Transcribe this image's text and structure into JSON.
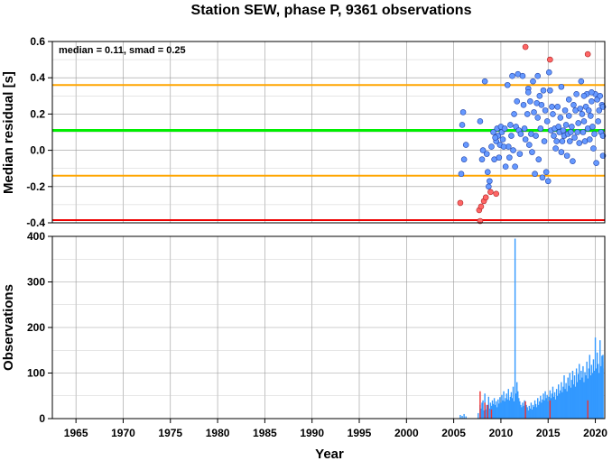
{
  "chart_data": [
    {
      "type": "scatter",
      "panel": "residual",
      "title": "Station SEW, phase P, 9361 observations",
      "ylabel": "Median residual [s]",
      "xlabel": "",
      "xlim": [
        1962.5,
        2021
      ],
      "ylim": [
        -0.4,
        0.6
      ],
      "grid": true,
      "annotation": "median = 0.11, smad = 0.25",
      "yticks": [
        "0.6",
        "0.4",
        "0.2",
        "0.0",
        "-0.2",
        "-0.4"
      ],
      "ytick_values": [
        0.6,
        0.4,
        0.2,
        0.0,
        -0.2,
        -0.4
      ],
      "hlines": [
        {
          "name": "median",
          "y": 0.11,
          "color": "#00ee00"
        },
        {
          "name": "median + smad",
          "y": 0.36,
          "color": "#ffa500"
        },
        {
          "name": "median - smad",
          "y": -0.14,
          "color": "#ffa500"
        },
        {
          "name": "lower bound",
          "y": -0.385,
          "color": "#ee0000"
        }
      ],
      "colors": {
        "normal": "#6699ff",
        "outlier": "#ff6666",
        "edge": "#2244aa"
      },
      "points_outlier": [
        [
          2005.7,
          -0.29
        ],
        [
          2007.7,
          -0.33
        ],
        [
          2007.9,
          -0.31
        ],
        [
          2008.2,
          -0.28
        ],
        [
          2008.4,
          -0.26
        ],
        [
          2008.9,
          -0.23
        ],
        [
          2009.5,
          -0.24
        ],
        [
          2007.8,
          -0.39
        ],
        [
          2012.6,
          0.57
        ],
        [
          2015.2,
          0.5
        ],
        [
          2019.2,
          0.53
        ]
      ],
      "points_normal": [
        [
          2005.8,
          -0.13
        ],
        [
          2005.9,
          0.14
        ],
        [
          2006.0,
          0.21
        ],
        [
          2006.3,
          0.03
        ],
        [
          2006.1,
          -0.05
        ],
        [
          2007.8,
          0.16
        ],
        [
          2008.0,
          -0.05
        ],
        [
          2008.1,
          0.0
        ],
        [
          2008.3,
          0.38
        ],
        [
          2008.5,
          -0.02
        ],
        [
          2008.6,
          -0.12
        ],
        [
          2008.7,
          -0.2
        ],
        [
          2008.8,
          -0.17
        ],
        [
          2009.0,
          0.02
        ],
        [
          2009.2,
          0.1
        ],
        [
          2009.3,
          -0.05
        ],
        [
          2009.5,
          0.05
        ],
        [
          2009.6,
          0.12
        ],
        [
          2009.7,
          0.08
        ],
        [
          2009.8,
          -0.04
        ],
        [
          2009.9,
          0.03
        ],
        [
          2010.0,
          0.13
        ],
        [
          2010.1,
          0.1
        ],
        [
          2010.2,
          0.06
        ],
        [
          2010.4,
          0.12
        ],
        [
          2010.5,
          -0.09
        ],
        [
          2010.7,
          0.36
        ],
        [
          2010.8,
          0.02
        ],
        [
          2010.9,
          -0.04
        ],
        [
          2011.0,
          0.14
        ],
        [
          2011.1,
          0.08
        ],
        [
          2011.2,
          0.41
        ],
        [
          2011.3,
          0.0
        ],
        [
          2011.4,
          0.2
        ],
        [
          2011.5,
          -0.09
        ],
        [
          2011.6,
          0.13
        ],
        [
          2011.7,
          0.27
        ],
        [
          2011.8,
          0.42
        ],
        [
          2011.9,
          0.11
        ],
        [
          2012.0,
          -0.02
        ],
        [
          2012.1,
          0.09
        ],
        [
          2012.3,
          0.41
        ],
        [
          2012.4,
          0.25
        ],
        [
          2012.5,
          0.12
        ],
        [
          2012.6,
          0.06
        ],
        [
          2012.8,
          0.2
        ],
        [
          2012.9,
          0.34
        ],
        [
          2013.0,
          0.03
        ],
        [
          2013.1,
          0.27
        ],
        [
          2013.2,
          0.09
        ],
        [
          2013.3,
          -0.01
        ],
        [
          2013.4,
          0.38
        ],
        [
          2013.5,
          0.21
        ],
        [
          2013.6,
          -0.13
        ],
        [
          2013.7,
          0.08
        ],
        [
          2013.8,
          0.26
        ],
        [
          2013.9,
          0.18
        ],
        [
          2014.0,
          -0.05
        ],
        [
          2014.1,
          0.3
        ],
        [
          2014.2,
          0.12
        ],
        [
          2014.3,
          0.25
        ],
        [
          2014.4,
          -0.15
        ],
        [
          2014.5,
          0.33
        ],
        [
          2014.6,
          0.05
        ],
        [
          2014.7,
          0.22
        ],
        [
          2014.8,
          -0.12
        ],
        [
          2014.9,
          0.16
        ],
        [
          2015.0,
          -0.17
        ],
        [
          2015.1,
          0.43
        ],
        [
          2015.2,
          0.33
        ],
        [
          2015.3,
          0.11
        ],
        [
          2015.4,
          0.24
        ],
        [
          2015.5,
          0.2
        ],
        [
          2015.6,
          0.08
        ],
        [
          2015.7,
          0.12
        ],
        [
          2015.8,
          0.01
        ],
        [
          2015.9,
          0.05
        ],
        [
          2016.0,
          0.24
        ],
        [
          2016.1,
          0.13
        ],
        [
          2016.2,
          0.1
        ],
        [
          2016.3,
          0.18
        ],
        [
          2016.4,
          -0.01
        ],
        [
          2016.5,
          0.05
        ],
        [
          2016.6,
          0.11
        ],
        [
          2016.7,
          0.08
        ],
        [
          2016.8,
          0.22
        ],
        [
          2016.9,
          0.14
        ],
        [
          2017.0,
          -0.03
        ],
        [
          2017.1,
          0.09
        ],
        [
          2017.2,
          0.19
        ],
        [
          2017.3,
          0.05
        ],
        [
          2017.4,
          0.1
        ],
        [
          2017.5,
          0.13
        ],
        [
          2017.6,
          -0.06
        ],
        [
          2017.7,
          0.25
        ],
        [
          2017.8,
          0.07
        ],
        [
          2017.9,
          0.22
        ],
        [
          2018.0,
          0.31
        ],
        [
          2018.1,
          0.1
        ],
        [
          2018.2,
          0.15
        ],
        [
          2018.3,
          0.04
        ],
        [
          2018.4,
          0.23
        ],
        [
          2018.5,
          0.38
        ],
        [
          2018.6,
          0.2
        ],
        [
          2018.7,
          0.1
        ],
        [
          2018.8,
          0.16
        ],
        [
          2018.9,
          0.05
        ],
        [
          2019.0,
          0.24
        ],
        [
          2019.1,
          0.31
        ],
        [
          2019.2,
          0.12
        ],
        [
          2019.3,
          0.22
        ],
        [
          2019.4,
          0.06
        ],
        [
          2019.5,
          0.19
        ],
        [
          2019.6,
          0.27
        ],
        [
          2019.7,
          0.13
        ],
        [
          2019.8,
          0.01
        ],
        [
          2019.9,
          0.09
        ],
        [
          2020.0,
          0.31
        ],
        [
          2020.1,
          -0.07
        ],
        [
          2020.2,
          0.28
        ],
        [
          2020.3,
          0.16
        ],
        [
          2020.4,
          0.22
        ],
        [
          2020.5,
          0.3
        ],
        [
          2020.6,
          0.1
        ],
        [
          2020.7,
          0.25
        ],
        [
          2020.8,
          0.08
        ],
        [
          2020.9,
          0.24
        ],
        [
          2021.0,
          -0.03
        ],
        [
          2019.6,
          0.32
        ],
        [
          2016.4,
          0.35
        ],
        [
          2013.9,
          0.41
        ],
        [
          2012.9,
          0.32
        ],
        [
          2010.3,
          0.02
        ],
        [
          2009.4,
          0.07
        ],
        [
          2018.8,
          0.3
        ],
        [
          2017.2,
          0.28
        ]
      ]
    },
    {
      "type": "bar",
      "panel": "observations",
      "ylabel": "Observations",
      "xlabel": "Year",
      "xlim": [
        1962.5,
        2021
      ],
      "ylim": [
        0,
        400
      ],
      "grid": true,
      "xticks": [
        "1965",
        "1970",
        "1975",
        "1980",
        "1985",
        "1990",
        "1995",
        "2000",
        "2005",
        "2010",
        "2015",
        "2020"
      ],
      "xtick_values": [
        1965,
        1970,
        1975,
        1980,
        1985,
        1990,
        1995,
        2000,
        2005,
        2010,
        2015,
        2020
      ],
      "yticks": [
        "400",
        "300",
        "200",
        "100",
        "0"
      ],
      "ytick_values": [
        400,
        300,
        200,
        100,
        0
      ],
      "colors": {
        "normal": "#3399ff",
        "outlier": "#ee3333"
      },
      "bars": [
        [
          2005.7,
          8
        ],
        [
          2005.9,
          6
        ],
        [
          2006.1,
          10
        ],
        [
          2006.3,
          5
        ],
        [
          2007.6,
          12
        ],
        [
          2007.8,
          30
        ],
        [
          2007.9,
          22
        ],
        [
          2008.0,
          35
        ],
        [
          2008.1,
          40
        ],
        [
          2008.2,
          18
        ],
        [
          2008.3,
          55
        ],
        [
          2008.4,
          20
        ],
        [
          2008.5,
          30
        ],
        [
          2008.6,
          25
        ],
        [
          2008.7,
          48
        ],
        [
          2008.8,
          22
        ],
        [
          2008.9,
          35
        ],
        [
          2009.0,
          28
        ],
        [
          2009.1,
          40
        ],
        [
          2009.2,
          32
        ],
        [
          2009.3,
          45
        ],
        [
          2009.4,
          30
        ],
        [
          2009.5,
          38
        ],
        [
          2009.6,
          25
        ],
        [
          2009.7,
          42
        ],
        [
          2009.8,
          33
        ],
        [
          2009.9,
          47
        ],
        [
          2010.0,
          35
        ],
        [
          2010.1,
          52
        ],
        [
          2010.2,
          40
        ],
        [
          2010.3,
          60
        ],
        [
          2010.4,
          38
        ],
        [
          2010.5,
          45
        ],
        [
          2010.6,
          55
        ],
        [
          2010.7,
          42
        ],
        [
          2010.8,
          65
        ],
        [
          2010.9,
          40
        ],
        [
          2011.0,
          48
        ],
        [
          2011.1,
          58
        ],
        [
          2011.2,
          45
        ],
        [
          2011.3,
          70
        ],
        [
          2011.4,
          38
        ],
        [
          2011.5,
          395
        ],
        [
          2011.6,
          55
        ],
        [
          2011.7,
          80
        ],
        [
          2011.8,
          60
        ],
        [
          2011.9,
          45
        ],
        [
          2012.0,
          38
        ],
        [
          2012.1,
          30
        ],
        [
          2012.2,
          25
        ],
        [
          2012.3,
          35
        ],
        [
          2012.4,
          28
        ],
        [
          2012.5,
          40
        ],
        [
          2012.6,
          22
        ],
        [
          2012.7,
          30
        ],
        [
          2012.8,
          25
        ],
        [
          2012.9,
          18
        ],
        [
          2013.0,
          28
        ],
        [
          2013.1,
          22
        ],
        [
          2013.2,
          35
        ],
        [
          2013.3,
          20
        ],
        [
          2013.4,
          30
        ],
        [
          2013.5,
          26
        ],
        [
          2013.6,
          40
        ],
        [
          2013.7,
          32
        ],
        [
          2013.8,
          25
        ],
        [
          2013.9,
          45
        ],
        [
          2014.0,
          30
        ],
        [
          2014.1,
          38
        ],
        [
          2014.2,
          50
        ],
        [
          2014.3,
          35
        ],
        [
          2014.4,
          42
        ],
        [
          2014.5,
          55
        ],
        [
          2014.6,
          40
        ],
        [
          2014.7,
          60
        ],
        [
          2014.8,
          45
        ],
        [
          2014.9,
          52
        ],
        [
          2015.0,
          38
        ],
        [
          2015.1,
          48
        ],
        [
          2015.2,
          62
        ],
        [
          2015.3,
          45
        ],
        [
          2015.4,
          55
        ],
        [
          2015.5,
          70
        ],
        [
          2015.6,
          48
        ],
        [
          2015.7,
          58
        ],
        [
          2015.8,
          42
        ],
        [
          2015.9,
          65
        ],
        [
          2016.0,
          50
        ],
        [
          2016.1,
          75
        ],
        [
          2016.2,
          55
        ],
        [
          2016.3,
          62
        ],
        [
          2016.4,
          80
        ],
        [
          2016.5,
          58
        ],
        [
          2016.6,
          70
        ],
        [
          2016.7,
          95
        ],
        [
          2016.8,
          65
        ],
        [
          2016.9,
          78
        ],
        [
          2017.0,
          60
        ],
        [
          2017.1,
          90
        ],
        [
          2017.2,
          72
        ],
        [
          2017.3,
          100
        ],
        [
          2017.4,
          68
        ],
        [
          2017.5,
          85
        ],
        [
          2017.6,
          105
        ],
        [
          2017.7,
          75
        ],
        [
          2017.8,
          95
        ],
        [
          2017.9,
          70
        ],
        [
          2018.0,
          110
        ],
        [
          2018.1,
          80
        ],
        [
          2018.2,
          98
        ],
        [
          2018.3,
          120
        ],
        [
          2018.4,
          85
        ],
        [
          2018.5,
          105
        ],
        [
          2018.6,
          90
        ],
        [
          2018.7,
          115
        ],
        [
          2018.8,
          80
        ],
        [
          2018.9,
          102
        ],
        [
          2019.0,
          95
        ],
        [
          2019.1,
          125
        ],
        [
          2019.2,
          88
        ],
        [
          2019.3,
          110
        ],
        [
          2019.4,
          140
        ],
        [
          2019.5,
          95
        ],
        [
          2019.6,
          118
        ],
        [
          2019.7,
          100
        ],
        [
          2019.8,
          130
        ],
        [
          2019.9,
          105
        ],
        [
          2020.0,
          178
        ],
        [
          2020.1,
          110
        ],
        [
          2020.2,
          145
        ],
        [
          2020.3,
          120
        ],
        [
          2020.4,
          100
        ],
        [
          2020.5,
          172
        ],
        [
          2020.6,
          115
        ],
        [
          2020.7,
          138
        ],
        [
          2020.8,
          125
        ],
        [
          2020.9,
          140
        ],
        [
          2021.0,
          110
        ]
      ],
      "outlier_bars": [
        [
          2007.8,
          60
        ],
        [
          2008.3,
          35
        ],
        [
          2008.6,
          30
        ],
        [
          2012.6,
          38
        ],
        [
          2015.2,
          40
        ],
        [
          2019.2,
          40
        ],
        [
          2009.0,
          20
        ]
      ]
    }
  ]
}
